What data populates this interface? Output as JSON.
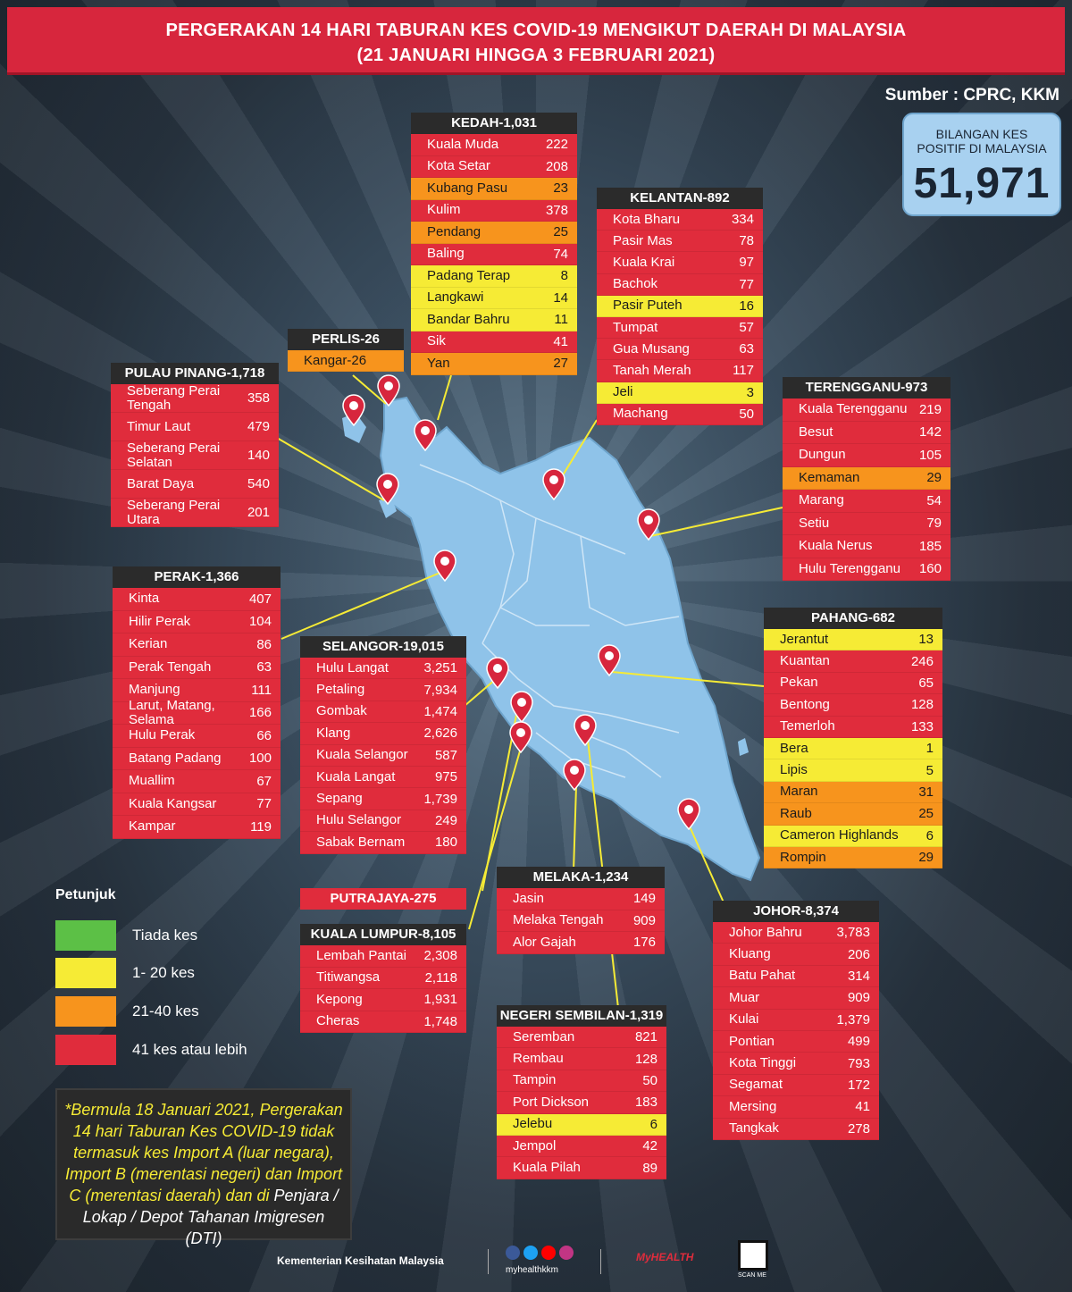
{
  "title_line1": "PERGERAKAN 14 HARI TABURAN KES COVID-19 MENGIKUT DAERAH DI MALAYSIA",
  "title_line2": "(21 JANUARI HINGGA 3 FEBRUARI 2021)",
  "source": "Sumber : CPRC, KKM",
  "total": {
    "label_line1": "BILANGAN KES",
    "label_line2": "POSITIF DI MALAYSIA",
    "value": "51,971"
  },
  "colors": {
    "none": "#5cc046",
    "low": "#f6eb35",
    "mid": "#f7941d",
    "high": "#e02c3c",
    "map_fill": "#8fc3e9"
  },
  "states": {
    "kedah": {
      "title": "KEDAH-1,031",
      "rows": [
        {
          "name": "Kuala Muda",
          "value": "222",
          "level": "red"
        },
        {
          "name": "Kota Setar",
          "value": "208",
          "level": "red"
        },
        {
          "name": "Kubang Pasu",
          "value": "23",
          "level": "orange"
        },
        {
          "name": "Kulim",
          "value": "378",
          "level": "red"
        },
        {
          "name": "Pendang",
          "value": "25",
          "level": "orange"
        },
        {
          "name": "Baling",
          "value": "74",
          "level": "red"
        },
        {
          "name": "Padang Terap",
          "value": "8",
          "level": "yellow"
        },
        {
          "name": "Langkawi",
          "value": "14",
          "level": "yellow"
        },
        {
          "name": "Bandar Bahru",
          "value": "11",
          "level": "yellow"
        },
        {
          "name": "Sik",
          "value": "41",
          "level": "red"
        },
        {
          "name": "Yan",
          "value": "27",
          "level": "orange"
        }
      ]
    },
    "kelantan": {
      "title": "KELANTAN-892",
      "rows": [
        {
          "name": "Kota Bharu",
          "value": "334",
          "level": "red"
        },
        {
          "name": "Pasir Mas",
          "value": "78",
          "level": "red"
        },
        {
          "name": "Kuala Krai",
          "value": "97",
          "level": "red"
        },
        {
          "name": "Bachok",
          "value": "77",
          "level": "red"
        },
        {
          "name": "Pasir Puteh",
          "value": "16",
          "level": "yellow"
        },
        {
          "name": "Tumpat",
          "value": "57",
          "level": "red"
        },
        {
          "name": "Gua Musang",
          "value": "63",
          "level": "red"
        },
        {
          "name": "Tanah Merah",
          "value": "117",
          "level": "red"
        },
        {
          "name": "Jeli",
          "value": "3",
          "level": "yellow"
        },
        {
          "name": "Machang",
          "value": "50",
          "level": "red"
        }
      ]
    },
    "perlis": {
      "title": "PERLIS-26",
      "rows": [
        {
          "name": "Kangar-26",
          "value": "",
          "level": "orange"
        }
      ]
    },
    "pinang": {
      "title": "PULAU PINANG-1,718",
      "rows": [
        {
          "name": "Seberang Perai Tengah",
          "value": "358",
          "level": "red"
        },
        {
          "name": "Timur Laut",
          "value": "479",
          "level": "red"
        },
        {
          "name": "Seberang Perai Selatan",
          "value": "140",
          "level": "red"
        },
        {
          "name": "Barat Daya",
          "value": "540",
          "level": "red"
        },
        {
          "name": "Seberang Perai Utara",
          "value": "201",
          "level": "red"
        }
      ]
    },
    "terengganu": {
      "title": "TERENGGANU-973",
      "rows": [
        {
          "name": "Kuala Terengganu",
          "value": "219",
          "level": "red"
        },
        {
          "name": "Besut",
          "value": "142",
          "level": "red"
        },
        {
          "name": "Dungun",
          "value": "105",
          "level": "red"
        },
        {
          "name": "Kemaman",
          "value": "29",
          "level": "orange"
        },
        {
          "name": "Marang",
          "value": "54",
          "level": "red"
        },
        {
          "name": "Setiu",
          "value": "79",
          "level": "red"
        },
        {
          "name": "Kuala Nerus",
          "value": "185",
          "level": "red"
        },
        {
          "name": "Hulu Terengganu",
          "value": "160",
          "level": "red"
        }
      ]
    },
    "perak": {
      "title": "PERAK-1,366",
      "rows": [
        {
          "name": "Kinta",
          "value": "407",
          "level": "red"
        },
        {
          "name": "Hilir Perak",
          "value": "104",
          "level": "red"
        },
        {
          "name": "Kerian",
          "value": "86",
          "level": "red"
        },
        {
          "name": "Perak Tengah",
          "value": "63",
          "level": "red"
        },
        {
          "name": "Manjung",
          "value": "111",
          "level": "red"
        },
        {
          "name": "Larut, Matang, Selama",
          "value": "166",
          "level": "red"
        },
        {
          "name": "Hulu Perak",
          "value": "66",
          "level": "red"
        },
        {
          "name": "Batang Padang",
          "value": "100",
          "level": "red"
        },
        {
          "name": "Muallim",
          "value": "67",
          "level": "red"
        },
        {
          "name": "Kuala Kangsar",
          "value": "77",
          "level": "red"
        },
        {
          "name": "Kampar",
          "value": "119",
          "level": "red"
        }
      ]
    },
    "selangor": {
      "title": "SELANGOR-19,015",
      "rows": [
        {
          "name": "Hulu Langat",
          "value": "3,251",
          "level": "red"
        },
        {
          "name": "Petaling",
          "value": "7,934",
          "level": "red"
        },
        {
          "name": "Gombak",
          "value": "1,474",
          "level": "red"
        },
        {
          "name": "Klang",
          "value": "2,626",
          "level": "red"
        },
        {
          "name": "Kuala Selangor",
          "value": "587",
          "level": "red"
        },
        {
          "name": "Kuala Langat",
          "value": "975",
          "level": "red"
        },
        {
          "name": "Sepang",
          "value": "1,739",
          "level": "red"
        },
        {
          "name": "Hulu Selangor",
          "value": "249",
          "level": "red"
        },
        {
          "name": "Sabak Bernam",
          "value": "180",
          "level": "red"
        }
      ]
    },
    "pahang": {
      "title": "PAHANG-682",
      "rows": [
        {
          "name": "Jerantut",
          "value": "13",
          "level": "yellow"
        },
        {
          "name": "Kuantan",
          "value": "246",
          "level": "red"
        },
        {
          "name": "Pekan",
          "value": "65",
          "level": "red"
        },
        {
          "name": "Bentong",
          "value": "128",
          "level": "red"
        },
        {
          "name": "Temerloh",
          "value": "133",
          "level": "red"
        },
        {
          "name": "Bera",
          "value": "1",
          "level": "yellow"
        },
        {
          "name": "Lipis",
          "value": "5",
          "level": "yellow"
        },
        {
          "name": "Maran",
          "value": "31",
          "level": "orange"
        },
        {
          "name": "Raub",
          "value": "25",
          "level": "orange"
        },
        {
          "name": "Cameron Highlands",
          "value": "6",
          "level": "yellow"
        },
        {
          "name": "Rompin",
          "value": "29",
          "level": "orange"
        }
      ]
    },
    "melaka": {
      "title": "MELAKA-1,234",
      "rows": [
        {
          "name": "Jasin",
          "value": "149",
          "level": "red"
        },
        {
          "name": "Melaka Tengah",
          "value": "909",
          "level": "red"
        },
        {
          "name": "Alor Gajah",
          "value": "176",
          "level": "red"
        }
      ]
    },
    "johor": {
      "title": "JOHOR-8,374",
      "rows": [
        {
          "name": "Johor Bahru",
          "value": "3,783",
          "level": "red"
        },
        {
          "name": "Kluang",
          "value": "206",
          "level": "red"
        },
        {
          "name": "Batu Pahat",
          "value": "314",
          "level": "red"
        },
        {
          "name": "Muar",
          "value": "909",
          "level": "red"
        },
        {
          "name": "Kulai",
          "value": "1,379",
          "level": "red"
        },
        {
          "name": "Pontian",
          "value": "499",
          "level": "red"
        },
        {
          "name": "Kota Tinggi",
          "value": "793",
          "level": "red"
        },
        {
          "name": "Segamat",
          "value": "172",
          "level": "red"
        },
        {
          "name": "Mersing",
          "value": "41",
          "level": "red"
        },
        {
          "name": "Tangkak",
          "value": "278",
          "level": "red"
        }
      ]
    },
    "kl": {
      "title": "KUALA LUMPUR-8,105",
      "rows": [
        {
          "name": "Lembah Pantai",
          "value": "2,308",
          "level": "red"
        },
        {
          "name": "Titiwangsa",
          "value": "2,118",
          "level": "red"
        },
        {
          "name": "Kepong",
          "value": "1,931",
          "level": "red"
        },
        {
          "name": "Cheras",
          "value": "1,748",
          "level": "red"
        }
      ]
    },
    "ns": {
      "title": "NEGERI SEMBILAN-1,319",
      "rows": [
        {
          "name": "Seremban",
          "value": "821",
          "level": "red"
        },
        {
          "name": "Rembau",
          "value": "128",
          "level": "red"
        },
        {
          "name": "Tampin",
          "value": "50",
          "level": "red"
        },
        {
          "name": "Port Dickson",
          "value": "183",
          "level": "red"
        },
        {
          "name": "Jelebu",
          "value": "6",
          "level": "yellow"
        },
        {
          "name": "Jempol",
          "value": "42",
          "level": "red"
        },
        {
          "name": "Kuala Pilah",
          "value": "89",
          "level": "red"
        }
      ]
    }
  },
  "putrajaya": "PUTRAJAYA-275",
  "legend": {
    "title": "Petunjuk",
    "items": [
      {
        "label": "Tiada kes",
        "color": "#5cc046"
      },
      {
        "label": "1- 20 kes",
        "color": "#f6eb35"
      },
      {
        "label": "21-40 kes",
        "color": "#f7941d"
      },
      {
        "label": "41 kes atau lebih",
        "color": "#e02c3c"
      }
    ]
  },
  "note": {
    "part1": "*Bermula 18 Januari 2021, Pergerakan 14 hari Taburan Kes COVID-19 tidak termasuk kes Import A (luar negara), Import B (merentasi negeri) dan Import C (merentasi daerah) dan di ",
    "part2": "Penjara / Lokap / Depot Tahanan Imigresen (DTI)"
  },
  "footer": {
    "ministry": "Kementerian Kesihatan Malaysia",
    "handle": "myhealthkkm",
    "brand": "MyHEALTH",
    "qr_label": "SCAN ME"
  }
}
